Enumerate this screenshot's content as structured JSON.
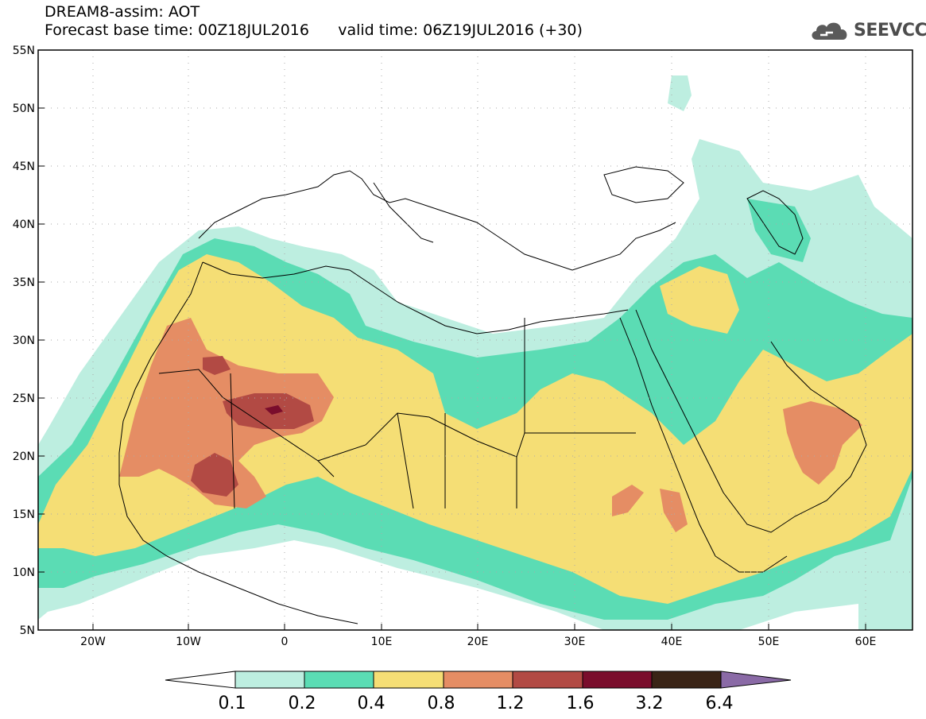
{
  "header": {
    "title": "DREAM8-assim: AOT",
    "base_time": "Forecast base time: 00Z18JUL2016",
    "valid_time": "valid time: 06Z19JUL2016 (+30)"
  },
  "logo": {
    "text": "SEEVCCC",
    "icon": "cloud-icon"
  },
  "axes": {
    "lat_labels": [
      "55N",
      "50N",
      "45N",
      "40N",
      "35N",
      "30N",
      "25N",
      "20N",
      "15N",
      "10N",
      "5N"
    ],
    "lon_labels": [
      "20W",
      "10W",
      "0",
      "10E",
      "20E",
      "30E",
      "40E",
      "50E",
      "60E"
    ]
  },
  "colorbar": {
    "labels": [
      "0.1",
      "0.2",
      "0.4",
      "0.8",
      "1.2",
      "1.6",
      "3.2",
      "6.4"
    ],
    "colors": [
      "#ffffff",
      "#bdeee0",
      "#5bdcb4",
      "#f5de75",
      "#e58d64",
      "#b24a44",
      "#7a0d2c",
      "#3a2416",
      "#8a6aa6"
    ]
  },
  "palette": {
    "c01": "#bdeee0",
    "c02": "#5bdcb4",
    "c04": "#f5de75",
    "c08": "#e58d64",
    "c12": "#b24a44",
    "c16": "#7a0d2c",
    "coast": "#000000"
  }
}
